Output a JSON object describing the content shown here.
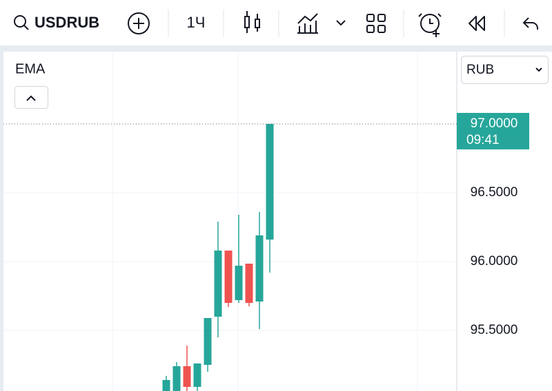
{
  "toolbar": {
    "symbol": "USDRUB",
    "interval": "1Ч"
  },
  "indicator": "EMA",
  "currency": "RUB",
  "chart_data": {
    "type": "candlestick",
    "ylim": [
      95.06,
      97.525
    ],
    "yticks": [
      {
        "value": 95.5,
        "label": "95.5000"
      },
      {
        "value": 96,
        "label": "96.0000"
      },
      {
        "value": 96.5,
        "label": "96.5000"
      }
    ],
    "up_color": "#26a69a",
    "down_color": "#ef5350",
    "grid": true,
    "open": [
      95.06,
      95.06,
      95.24,
      95.09,
      95.25,
      95.6,
      96.08,
      95.72,
      95.985,
      95.71,
      96.16
    ],
    "high": [
      95.17,
      95.27,
      95.39,
      95.26,
      95.59,
      96.29,
      96.08,
      96.34,
      95.985,
      96.36,
      97.0
    ],
    "low": [
      95.06,
      95.06,
      95.06,
      95.06,
      95.2,
      95.45,
      95.67,
      95.7,
      95.675,
      95.51,
      95.92
    ],
    "close": [
      95.14,
      95.24,
      95.09,
      95.26,
      95.59,
      96.08,
      95.7,
      95.97,
      95.7,
      96.19,
      97.0
    ],
    "last_price": {
      "value": 97,
      "label": "97.0000",
      "time": "09:41"
    }
  }
}
